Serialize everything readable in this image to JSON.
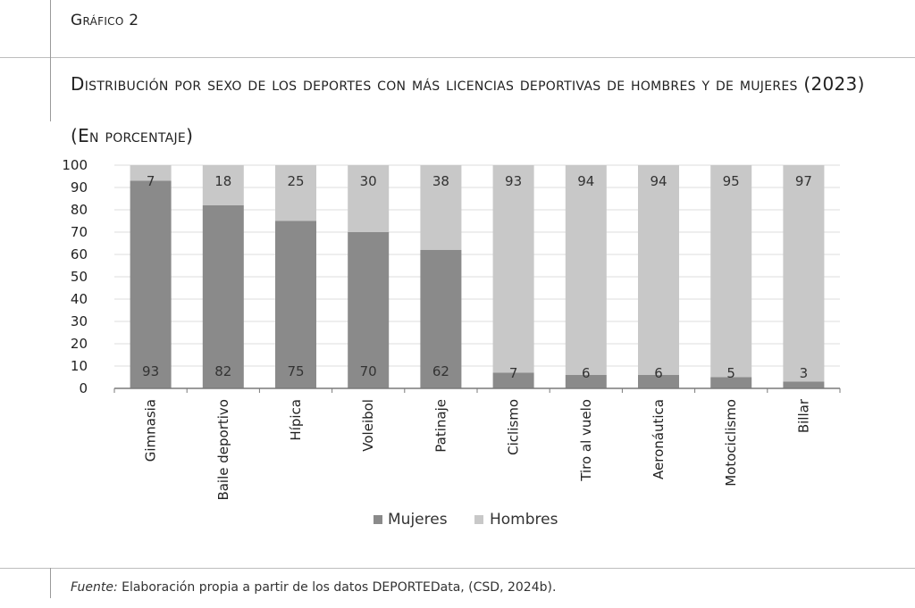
{
  "figure_label": "Gráfico 2",
  "title": "Distribución por sexo de los deportes con más licencias deportivas de hombres y de mujeres (2023)",
  "subtitle": "(En porcentaje)",
  "source": {
    "prefix": "Fuente:",
    "text": " Elaboración propia a partir de los datos DEPORTEData, (CSD, 2024b)."
  },
  "colors": {
    "mujeres": "#8a8a8a",
    "hombres": "#c8c8c8",
    "grid": "#dcdcdc",
    "axis": "#7a7a7a"
  },
  "chart_data": {
    "type": "bar",
    "stacked": true,
    "categories": [
      "Gimnasia",
      "Baile deportivo",
      "Hípica",
      "Voleibol",
      "Patinaje",
      "Ciclismo",
      "Tiro al vuelo",
      "Aeronáutica",
      "Motociclismo",
      "Billar"
    ],
    "series": [
      {
        "name": "Mujeres",
        "values": [
          93,
          82,
          75,
          70,
          62,
          7,
          6,
          6,
          5,
          3
        ]
      },
      {
        "name": "Hombres",
        "values": [
          7,
          18,
          25,
          30,
          38,
          93,
          94,
          94,
          95,
          97
        ]
      }
    ],
    "ylim": [
      0,
      100
    ],
    "yticks": [
      0,
      10,
      20,
      30,
      40,
      50,
      60,
      70,
      80,
      90,
      100
    ],
    "xlabel": "",
    "ylabel": "",
    "grid": true,
    "legend": "bottom-center"
  }
}
